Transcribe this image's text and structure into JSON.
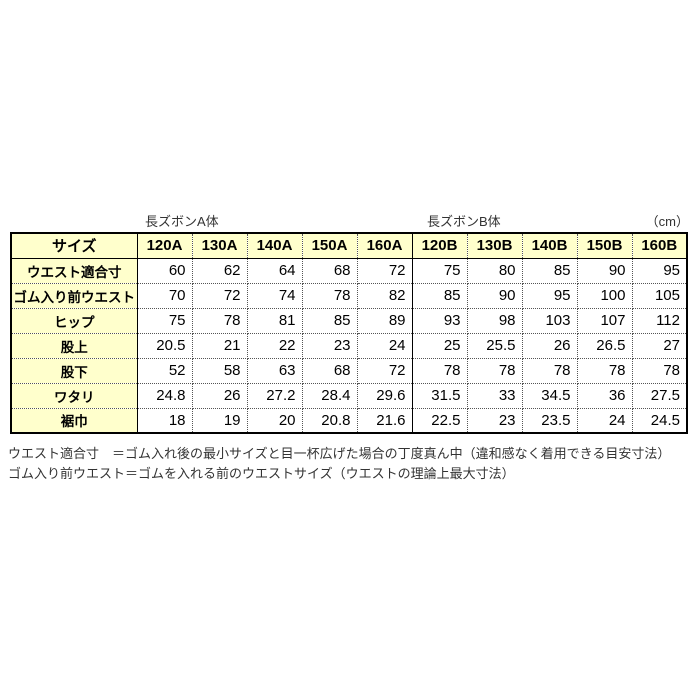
{
  "header": {
    "section_a_title": "長ズボンA体",
    "section_b_title": "長ズボンB体",
    "unit_label": "（cm）"
  },
  "chart_data": {
    "type": "table",
    "unit": "cm",
    "columns": [
      "サイズ",
      "120A",
      "130A",
      "140A",
      "150A",
      "160A",
      "120B",
      "130B",
      "140B",
      "150B",
      "160B"
    ],
    "rows": [
      {
        "label": "ウエスト適合寸",
        "values": [
          60,
          62,
          64,
          68,
          72,
          75,
          80,
          85,
          90,
          95
        ]
      },
      {
        "label": "ゴム入り前ウエスト",
        "values": [
          70,
          72,
          74,
          78,
          82,
          85,
          90,
          95,
          100,
          105
        ]
      },
      {
        "label": "ヒップ",
        "values": [
          75,
          78,
          81,
          85,
          89,
          93,
          98,
          103,
          107,
          112
        ]
      },
      {
        "label": "股上",
        "values": [
          20.5,
          21,
          22,
          23,
          24,
          25,
          25.5,
          26,
          26.5,
          27
        ]
      },
      {
        "label": "股下",
        "values": [
          52,
          58,
          63,
          68,
          72,
          78,
          78,
          78,
          78,
          78
        ]
      },
      {
        "label": "ワタリ",
        "values": [
          24.8,
          26,
          27.2,
          28.4,
          29.6,
          31.5,
          33,
          34.5,
          36,
          27.5
        ]
      },
      {
        "label": "裾巾",
        "values": [
          18,
          19,
          20,
          20.8,
          21.6,
          22.5,
          23,
          23.5,
          24,
          24.5
        ]
      }
    ],
    "groups": [
      {
        "name": "長ズボンA体",
        "columns": [
          "120A",
          "130A",
          "140A",
          "150A",
          "160A"
        ]
      },
      {
        "name": "長ズボンB体",
        "columns": [
          "120B",
          "130B",
          "140B",
          "150B",
          "160B"
        ]
      }
    ]
  },
  "footnotes": [
    "ウエスト適合寸　＝ゴム入れ後の最小サイズと目一杯広げた場合の丁度真ん中（違和感なく着用できる目安寸法）",
    "ゴム入り前ウエスト＝ゴムを入れる前のウエストサイズ（ウエストの理論上最大寸法）"
  ],
  "colors": {
    "highlight_bg": "#FFFFCC",
    "border": "#000000",
    "text": "#222222"
  }
}
